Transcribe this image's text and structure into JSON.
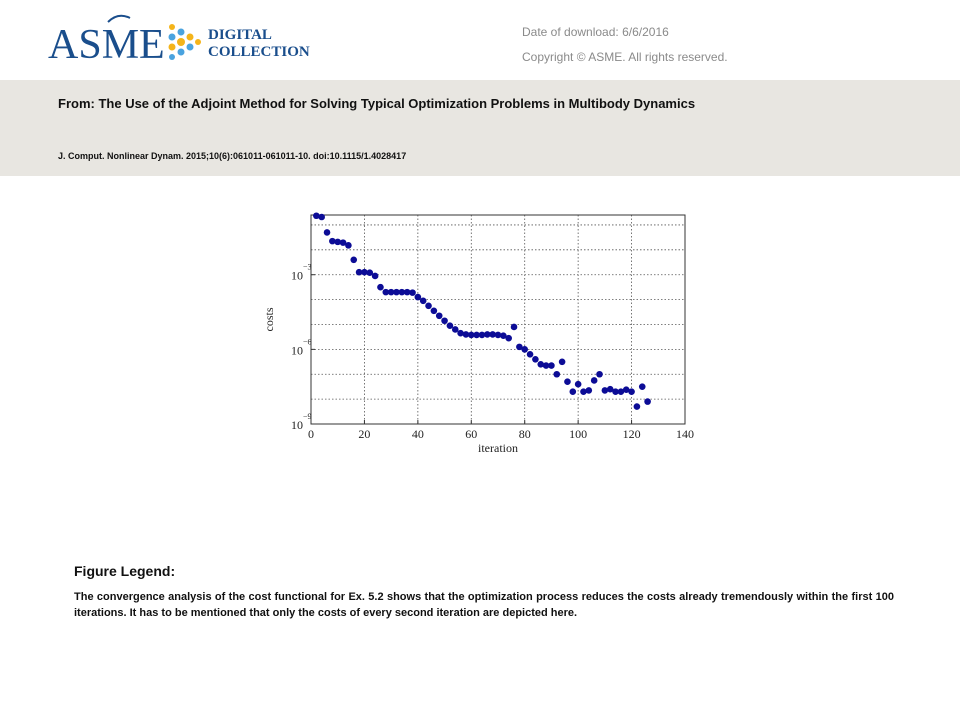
{
  "header": {
    "logo_text": "ASME",
    "logo_sub_1": "DIGITAL",
    "logo_sub_2": "COLLECTION",
    "download_label": "Date of download:",
    "download_date": "6/6/2016",
    "copyright": "Copyright © ASME. All rights reserved.",
    "brand_color": "#1a4e8c",
    "dot_colors": [
      "#f4b41a",
      "#4aa3df"
    ]
  },
  "article": {
    "from_label": "From:",
    "title": "The Use of the Adjoint Method for Solving Typical Optimization Problems in Multibody Dynamics",
    "citation": "J. Comput. Nonlinear Dynam. 2015;10(6):061011-061011-10. doi:10.1115/1.4028417"
  },
  "legend": {
    "title": "Figure Legend:",
    "text": "The convergence analysis of the cost functional for Ex. 5.2 shows that the optimization process reduces the costs already tremendously within the first 100 iterations. It has to be mentioned that only the costs of every second iteration are depicted here."
  },
  "chart_data": {
    "type": "scatter",
    "xlabel": "iteration",
    "ylabel": "costs",
    "xlim": [
      0,
      140
    ],
    "ylim_log10": [
      -9,
      -0.6
    ],
    "y_scale": "log",
    "x_ticks": [
      0,
      20,
      40,
      60,
      80,
      100,
      120,
      140
    ],
    "y_ticks": [
      {
        "base": "10",
        "exp": "−3",
        "value_log10": -3
      },
      {
        "base": "10",
        "exp": "−6",
        "value_log10": -6
      },
      {
        "base": "10",
        "exp": "−9",
        "value_log10": -9
      }
    ],
    "grid": true,
    "marker_color": "#0c0c96",
    "series": [
      {
        "x": [
          2,
          4,
          6,
          8,
          10,
          12,
          14,
          16,
          18,
          20,
          22,
          24,
          26,
          28,
          30,
          32,
          34,
          36,
          38,
          40,
          42,
          44,
          46,
          48,
          50,
          52,
          54,
          56,
          58,
          60,
          62,
          64,
          66,
          68,
          70,
          72,
          74,
          76,
          78,
          80,
          82,
          84,
          86,
          88,
          90,
          92,
          94,
          96,
          98,
          100,
          102,
          104,
          106,
          108,
          110,
          112,
          114,
          116,
          118,
          120,
          122,
          124,
          126
        ],
        "y_log10": [
          -0.63,
          -0.68,
          -1.3,
          -1.65,
          -1.68,
          -1.71,
          -1.82,
          -2.4,
          -2.9,
          -2.9,
          -2.92,
          -3.05,
          -3.5,
          -3.7,
          -3.7,
          -3.7,
          -3.7,
          -3.7,
          -3.72,
          -3.9,
          -4.05,
          -4.25,
          -4.45,
          -4.65,
          -4.85,
          -5.05,
          -5.2,
          -5.35,
          -5.4,
          -5.42,
          -5.42,
          -5.42,
          -5.4,
          -5.4,
          -5.42,
          -5.45,
          -5.55,
          -5.1,
          -5.9,
          -6.0,
          -6.2,
          -6.4,
          -6.6,
          -6.65,
          -6.65,
          -7.0,
          -6.5,
          -7.3,
          -7.7,
          -7.4,
          -7.7,
          -7.65,
          -7.25,
          -7.0,
          -7.65,
          -7.6,
          -7.7,
          -7.7,
          -7.62,
          -7.7,
          -8.3,
          -7.5,
          -8.1
        ]
      }
    ]
  }
}
